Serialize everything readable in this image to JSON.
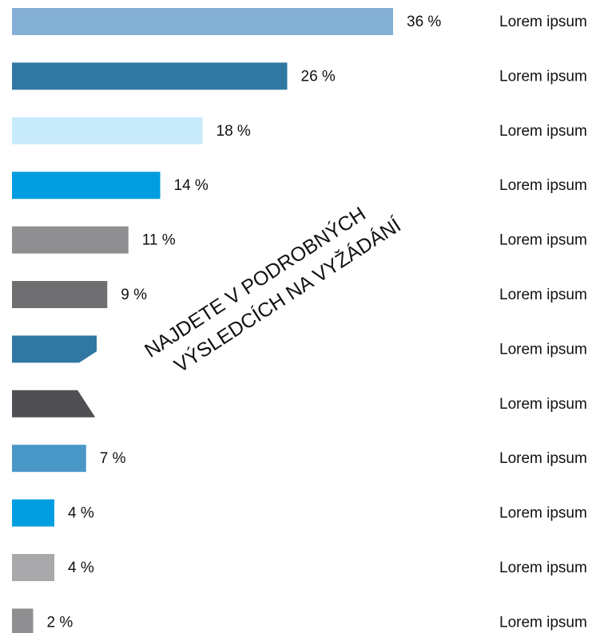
{
  "chart_data": {
    "type": "bar",
    "orientation": "horizontal",
    "categories": [
      "Lorem ipsum",
      "Lorem ipsum",
      "Lorem ipsum",
      "Lorem ipsum",
      "Lorem ipsum",
      "Lorem ipsum",
      "Lorem ipsum",
      "Lorem ipsum",
      "Lorem ipsum",
      "Lorem ipsum",
      "Lorem ipsum",
      "Lorem ipsum"
    ],
    "values": [
      36,
      26,
      18,
      14,
      11,
      9,
      8,
      8,
      7,
      4,
      4,
      2
    ],
    "value_labels": [
      "36 %",
      "26 %",
      "18 %",
      "14 %",
      "11 %",
      "9 %",
      null,
      null,
      "7 %",
      "4 %",
      "4 %",
      "2 %"
    ],
    "colors": [
      "#85b0d6",
      "#3177a3",
      "#c8ebfb",
      "#009ee0",
      "#8f8f92",
      "#6f6f72",
      "#3177a3",
      "#505054",
      "#4a98c8",
      "#009ee0",
      "#a9a9ab",
      "#8f8f92"
    ],
    "xlim": [
      0,
      36
    ],
    "annotations": [
      "NAJDETE V PODROBNÝCH",
      "VÝSLEDCÍCH NA VYŽÁDÁNÍ"
    ]
  }
}
